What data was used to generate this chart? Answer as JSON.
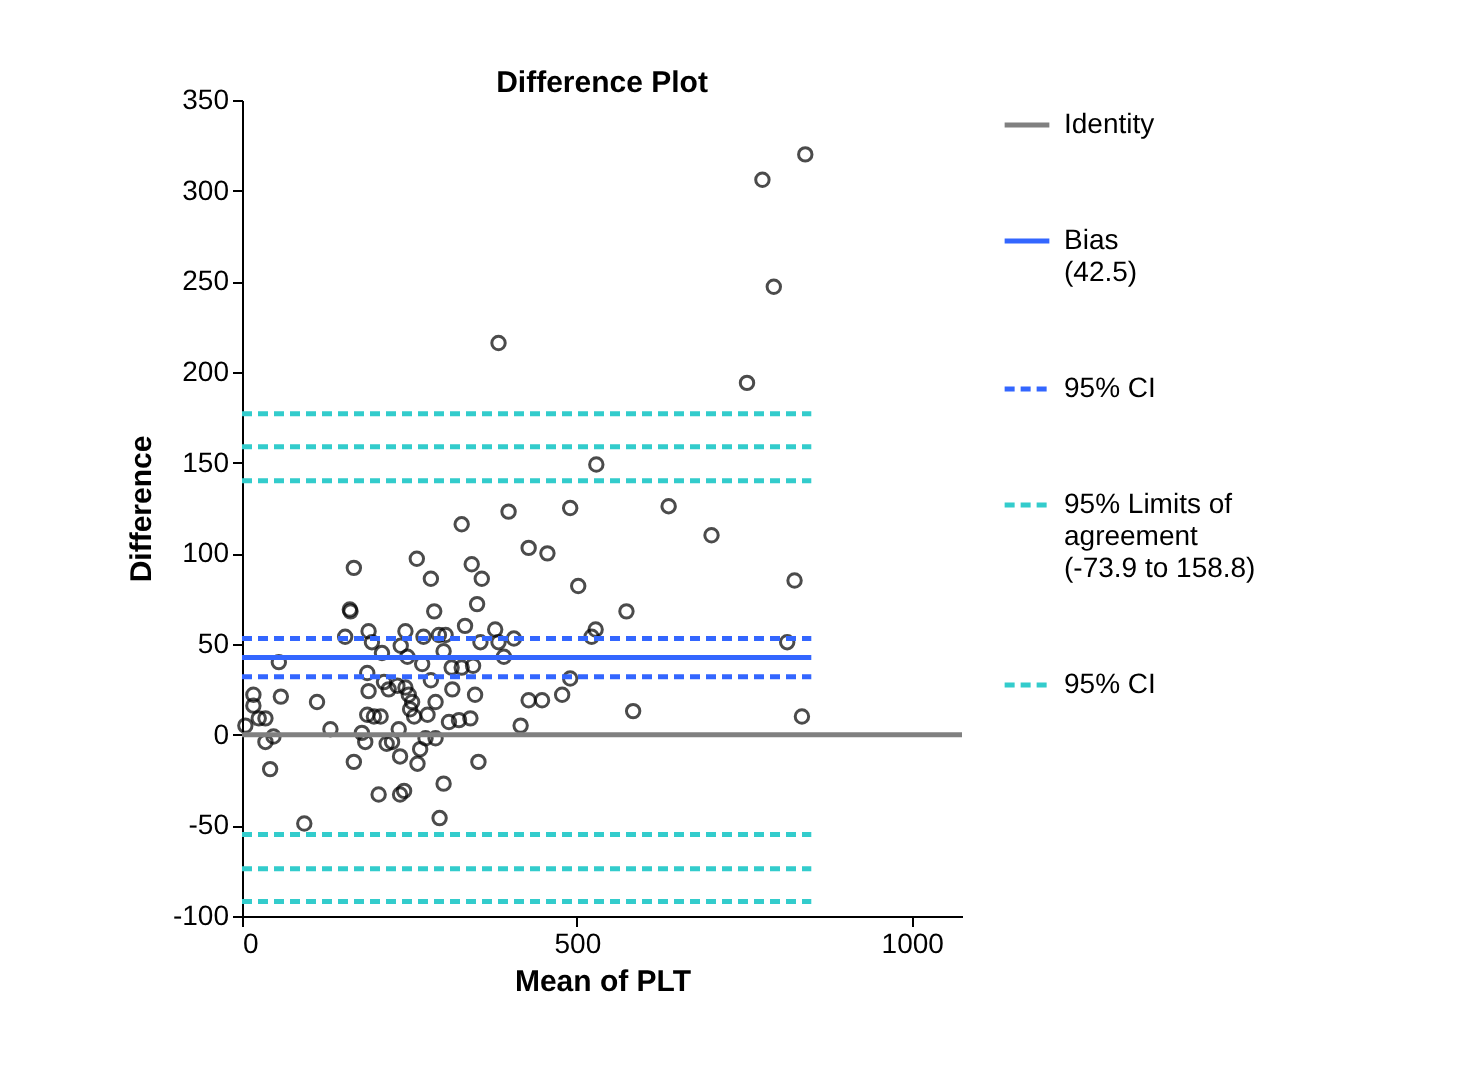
{
  "chart_data": {
    "type": "scatter",
    "title": "Difference Plot",
    "xlabel": "Mean of PLT",
    "ylabel": "Difference",
    "xlim": [
      0,
      1075
    ],
    "xticks": [
      0,
      500,
      {
        "value": 1000,
        "label": "1000"
      }
    ],
    "ylim": [
      -100,
      350
    ],
    "yticks": [
      -100,
      -50,
      0,
      50,
      100,
      150,
      200,
      250,
      300,
      350
    ],
    "grid": false,
    "legend": "right",
    "series": [
      {
        "marker": "circle",
        "color": "#000000",
        "x": [
          5,
          17,
          17,
          25,
          35,
          35,
          47,
          42,
          55,
          58,
          93,
          112,
          132,
          167,
          161,
          162,
          154,
          167,
          179,
          184,
          187,
          189,
          194,
          187,
          197,
          189,
          209,
          204,
          207,
          212,
          216,
          219,
          224,
          232,
          234,
          236,
          236,
          242,
          237,
          244,
          244,
          247,
          249,
          251,
          254,
          257,
          261,
          262,
          266,
          269,
          271,
          274,
          277,
          282,
          282,
          287,
          289,
          289,
          294,
          301,
          295,
          301,
          304,
          309,
          313,
          314,
          324,
          328,
          328,
          333,
          343,
          345,
          348,
          351,
          358,
          353,
          356,
          341,
          378,
          383,
          391,
          398,
          406,
          416,
          428,
          428,
          448,
          456,
          478,
          490,
          490,
          502,
          522,
          528,
          529,
          574,
          584,
          637,
          701,
          825,
          814,
          836,
          383,
          754,
          794,
          777,
          841
        ],
        "values": [
          5,
          22,
          16,
          9,
          -4,
          9,
          -1,
          -19,
          40,
          21,
          -49,
          18,
          3,
          92,
          69,
          68,
          54,
          -15,
          1,
          -4,
          34,
          57,
          51,
          11,
          10,
          24,
          45,
          -33,
          10,
          29,
          -5,
          25,
          -4,
          27,
          3,
          -12,
          -33,
          -31,
          49,
          57,
          26,
          43,
          22,
          14,
          18,
          10,
          97,
          -16,
          -8,
          39,
          54,
          -2,
          11,
          86,
          30,
          68,
          18,
          -2,
          55,
          -27,
          -46,
          46,
          55,
          7,
          37,
          25,
          8,
          116,
          37,
          60,
          94,
          38,
          22,
          72,
          86,
          -15,
          51,
          9,
          58,
          51,
          43,
          123,
          53,
          5,
          103,
          19,
          19,
          100,
          22,
          125,
          31,
          82,
          54,
          58,
          149,
          68,
          13,
          126,
          110,
          85,
          51,
          10,
          216,
          194,
          247,
          306,
          320
        ]
      },
      {
        "type": "line",
        "marker": "none",
        "name": "Identity",
        "color": "#808080",
        "line_style": "solid",
        "x": [
          0,
          1075
        ],
        "values": [
          0,
          0
        ]
      },
      {
        "type": "line",
        "marker": "none",
        "name": "Bias (42.5)",
        "color": "#3366ff",
        "line_style": "solid",
        "x": [
          0,
          850
        ],
        "values": [
          42.5,
          42.5
        ]
      },
      {
        "type": "line",
        "marker": "none",
        "name": "95% CI",
        "color": "#3366ff",
        "line_style": "dashed",
        "x": [
          0,
          850
        ],
        "values": [
          53,
          53
        ]
      },
      {
        "type": "line",
        "marker": "none",
        "color": "#3366ff",
        "line_style": "dashed",
        "x": [
          0,
          850
        ],
        "values": [
          32,
          32
        ]
      },
      {
        "type": "line",
        "marker": "none",
        "name": "95% Limits of agreement (-73.9 to 158.8)",
        "color": "#33cccc",
        "line_style": "dashed",
        "x": [
          0,
          850
        ],
        "values": [
          158.8,
          158.8
        ]
      },
      {
        "type": "line",
        "marker": "none",
        "color": "#33cccc",
        "line_style": "dashed",
        "x": [
          0,
          850
        ],
        "values": [
          -73.9,
          -73.9
        ]
      },
      {
        "type": "line",
        "marker": "none",
        "name": "95% CI",
        "color": "#33cccc",
        "line_style": "dashed",
        "x": [
          0,
          850
        ],
        "values": [
          177,
          177
        ]
      },
      {
        "type": "line",
        "marker": "none",
        "color": "#33cccc",
        "line_style": "dashed",
        "x": [
          0,
          850
        ],
        "values": [
          140,
          140
        ]
      },
      {
        "type": "line",
        "marker": "none",
        "color": "#33cccc",
        "line_style": "dashed",
        "x": [
          0,
          850
        ],
        "values": [
          -55,
          -55
        ]
      },
      {
        "type": "line",
        "marker": "none",
        "color": "#33cccc",
        "line_style": "dashed",
        "x": [
          0,
          850
        ],
        "values": [
          -92,
          -92
        ]
      }
    ]
  }
}
